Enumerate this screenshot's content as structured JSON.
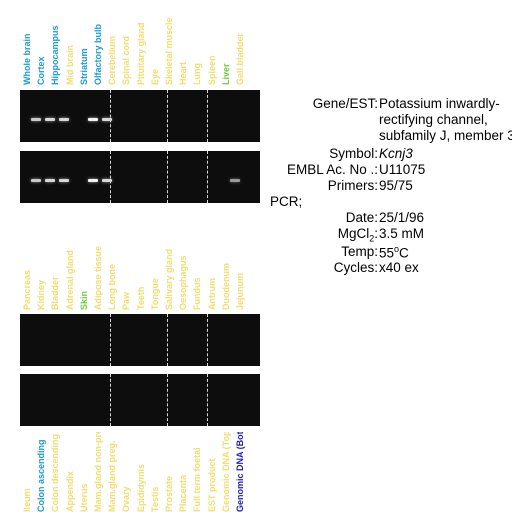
{
  "panel1": {
    "lanes": [
      {
        "label": "Whole brain",
        "color": "#1a9cd6"
      },
      {
        "label": "Cortex",
        "color": "#1a9cd6"
      },
      {
        "label": "Hippocampus",
        "color": "#1a9cd6"
      },
      {
        "label": "Mid brain",
        "color": "#f2dd6e"
      },
      {
        "label": "Striatum",
        "color": "#1a9cd6"
      },
      {
        "label": "Olfactory bulb",
        "color": "#1a9cd6"
      },
      {
        "label": "Cerebellum",
        "color": "#f2dd6e"
      },
      {
        "label": "Spinal cord",
        "color": "#f2dd6e"
      },
      {
        "label": "Pituitary gland",
        "color": "#f2dd6e"
      },
      {
        "label": "Eye",
        "color": "#f2dd6e"
      },
      {
        "label": "Skeletal muscle",
        "color": "#f2dd6e"
      },
      {
        "label": "Heart",
        "color": "#f2dd6e"
      },
      {
        "label": "Lung",
        "color": "#f2dd6e"
      },
      {
        "label": "Spleen",
        "color": "#f2dd6e"
      },
      {
        "label": "Liver",
        "color": "#6ccf3a"
      },
      {
        "label": "Gall bladder",
        "color": "#f2dd6e"
      }
    ],
    "gel_top_bands": [
      0.6,
      0.7,
      0.7,
      0,
      0.9,
      0.7,
      0,
      0,
      0,
      0,
      0,
      0,
      0,
      0,
      0,
      0
    ],
    "gel_bottom_bands": [
      0.6,
      0.7,
      0.7,
      0,
      0.9,
      0.7,
      0,
      0,
      0,
      0,
      0,
      0,
      0,
      0,
      0.25,
      0
    ]
  },
  "panel2": {
    "lanes": [
      {
        "label": "Pancreas",
        "color": "#f2dd6e"
      },
      {
        "label": "Kidney",
        "color": "#f2dd6e"
      },
      {
        "label": "Bladder",
        "color": "#f2dd6e"
      },
      {
        "label": "Adrenal gland",
        "color": "#f2dd6e"
      },
      {
        "label": "Skin",
        "color": "#6ccf3a"
      },
      {
        "label": "Adipose tissue",
        "color": "#f2dd6e"
      },
      {
        "label": "Long bone",
        "color": "#f2dd6e"
      },
      {
        "label": "Paw",
        "color": "#f2dd6e"
      },
      {
        "label": "Teeth",
        "color": "#f2dd6e"
      },
      {
        "label": "Tongue",
        "color": "#f2dd6e"
      },
      {
        "label": "Salivary gland",
        "color": "#f2dd6e"
      },
      {
        "label": "Oesophagus",
        "color": "#f2dd6e"
      },
      {
        "label": "Fundus",
        "color": "#f2dd6e"
      },
      {
        "label": "Antrum",
        "color": "#f2dd6e"
      },
      {
        "label": "Duodenum",
        "color": "#f2dd6e"
      },
      {
        "label": "Jejunum",
        "color": "#f2dd6e"
      }
    ],
    "gel_top_bands": [
      0,
      0,
      0,
      0,
      0,
      0,
      0,
      0,
      0,
      0,
      0,
      0,
      0,
      0,
      0,
      0
    ],
    "gel_bottom_bands": [
      0,
      0,
      0,
      0,
      0,
      0,
      0,
      0,
      0,
      0,
      0,
      0,
      0,
      0,
      0,
      0
    ]
  },
  "panel3": {
    "lanes": [
      {
        "label": "Ileum",
        "color": "#f2dd6e"
      },
      {
        "label": "Colon ascending",
        "color": "#1a9cd6"
      },
      {
        "label": "Colon descending",
        "color": "#f2dd6e"
      },
      {
        "label": "Appendix",
        "color": "#f2dd6e"
      },
      {
        "label": "Uterus",
        "color": "#f2dd6e"
      },
      {
        "label": "Mam.gland non-preg.",
        "color": "#f2dd6e"
      },
      {
        "label": "Mam.gland preg.",
        "color": "#f2dd6e"
      },
      {
        "label": "Ovary",
        "color": "#f2dd6e"
      },
      {
        "label": "Epididymis",
        "color": "#f2dd6e"
      },
      {
        "label": "Testis",
        "color": "#f2dd6e"
      },
      {
        "label": "Prostate",
        "color": "#f2dd6e"
      },
      {
        "label": "Placenta",
        "color": "#f2dd6e"
      },
      {
        "label": "Full term foetal",
        "color": "#f2dd6e"
      },
      {
        "label": "EST product",
        "color": "#f2dd6e"
      },
      {
        "label": "Genomic DNA (Top)",
        "color": "#f2dd6e"
      },
      {
        "label": "Genomic DNA (Bot.)",
        "color": "#1f1fb5"
      }
    ]
  },
  "info": {
    "gene_key": "Gene/EST:",
    "gene_val": "Potassium inwardly-rectifying channel, subfamily J, member 3",
    "symbol_key": "Symbol:",
    "symbol_val": "Kcnj3",
    "embl_key": "EMBL Ac. No .:",
    "embl_val": "U11075",
    "primers_key": "Primers:",
    "primers_val": "95/75",
    "pcr_key": "PCR;",
    "date_key": "Date:",
    "date_val": "25/1/96",
    "mgcl_key": "MgCl",
    "mgcl_sub": "2",
    "mgcl_colon": ":",
    "mgcl_val": "3.5 mM",
    "temp_key": "Temp:",
    "temp_val": "55",
    "temp_sup": "o",
    "temp_unit": "C",
    "cycles_key": "Cycles:",
    "cycles_val": "x40 ex"
  }
}
